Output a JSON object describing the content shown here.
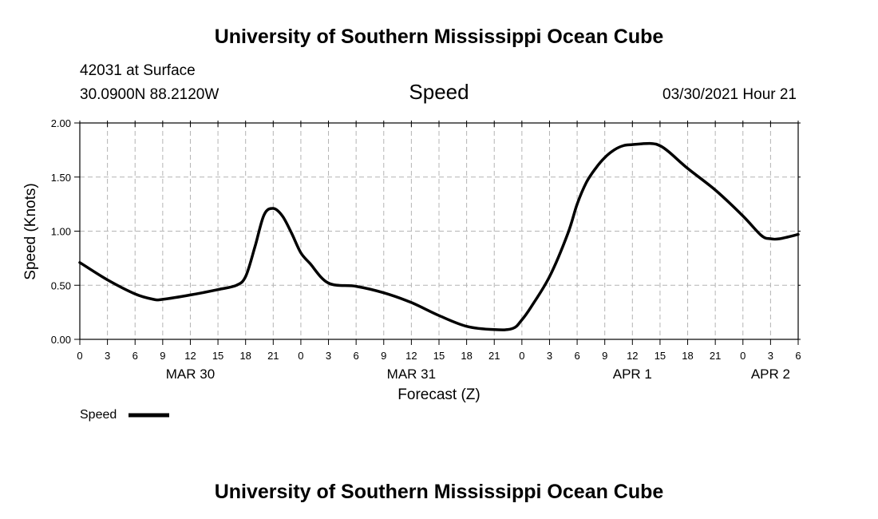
{
  "header_title": "University of Southern Mississippi Ocean Cube",
  "footer_title": "University of Southern Mississippi Ocean Cube",
  "station": {
    "name": "42031 at Surface",
    "coords": "30.0900N  88.2120W"
  },
  "run_time": "03/30/2021 Hour 21",
  "legend": {
    "label": "Speed"
  },
  "colors": {
    "line": "#000000",
    "grid": "#b4b4b4",
    "background": "#ffffff"
  },
  "chart_data": {
    "type": "line",
    "title": "Speed",
    "xlabel": "Forecast (Z)",
    "ylabel": "Speed (Knots)",
    "xlim": [
      0,
      78
    ],
    "ylim": [
      0,
      2
    ],
    "y_ticks": [
      {
        "value": 0.0,
        "label": "0.00"
      },
      {
        "value": 0.5,
        "label": "0.50"
      },
      {
        "value": 1.0,
        "label": "1.00"
      },
      {
        "value": 1.5,
        "label": "1.50"
      },
      {
        "value": 2.0,
        "label": "2.00"
      }
    ],
    "x_ticks": [
      {
        "value": 0,
        "label": "0"
      },
      {
        "value": 3,
        "label": "3"
      },
      {
        "value": 6,
        "label": "6"
      },
      {
        "value": 9,
        "label": "9"
      },
      {
        "value": 12,
        "label": "12"
      },
      {
        "value": 15,
        "label": "15"
      },
      {
        "value": 18,
        "label": "18"
      },
      {
        "value": 21,
        "label": "21"
      },
      {
        "value": 24,
        "label": "0"
      },
      {
        "value": 27,
        "label": "3"
      },
      {
        "value": 30,
        "label": "6"
      },
      {
        "value": 33,
        "label": "9"
      },
      {
        "value": 36,
        "label": "12"
      },
      {
        "value": 39,
        "label": "15"
      },
      {
        "value": 42,
        "label": "18"
      },
      {
        "value": 45,
        "label": "21"
      },
      {
        "value": 48,
        "label": "0"
      },
      {
        "value": 51,
        "label": "3"
      },
      {
        "value": 54,
        "label": "6"
      },
      {
        "value": 57,
        "label": "9"
      },
      {
        "value": 60,
        "label": "12"
      },
      {
        "value": 63,
        "label": "15"
      },
      {
        "value": 66,
        "label": "18"
      },
      {
        "value": 69,
        "label": "21"
      },
      {
        "value": 72,
        "label": "0"
      },
      {
        "value": 75,
        "label": "3"
      },
      {
        "value": 78,
        "label": "6"
      }
    ],
    "date_labels": [
      {
        "value": 12,
        "label": "MAR 30"
      },
      {
        "value": 36,
        "label": "MAR 31"
      },
      {
        "value": 60,
        "label": "APR 1"
      },
      {
        "value": 75,
        "label": "APR 2"
      }
    ],
    "series": [
      {
        "name": "Speed",
        "x": [
          0,
          3,
          6,
          8,
          9,
          12,
          15,
          17,
          18,
          19,
          20,
          21,
          22,
          23,
          24,
          25,
          27,
          30,
          33,
          36,
          39,
          42,
          45,
          47,
          48,
          49,
          51,
          53,
          54,
          55,
          56,
          57,
          58,
          59,
          60,
          62,
          63,
          64,
          66,
          69,
          72,
          74,
          75,
          76,
          78
        ],
        "y": [
          0.71,
          0.55,
          0.42,
          0.37,
          0.37,
          0.41,
          0.46,
          0.5,
          0.58,
          0.85,
          1.15,
          1.21,
          1.14,
          0.98,
          0.8,
          0.7,
          0.52,
          0.49,
          0.43,
          0.34,
          0.22,
          0.12,
          0.09,
          0.1,
          0.18,
          0.3,
          0.58,
          0.98,
          1.25,
          1.45,
          1.58,
          1.68,
          1.75,
          1.79,
          1.8,
          1.81,
          1.79,
          1.73,
          1.58,
          1.38,
          1.14,
          0.96,
          0.93,
          0.93,
          0.97
        ]
      }
    ]
  }
}
